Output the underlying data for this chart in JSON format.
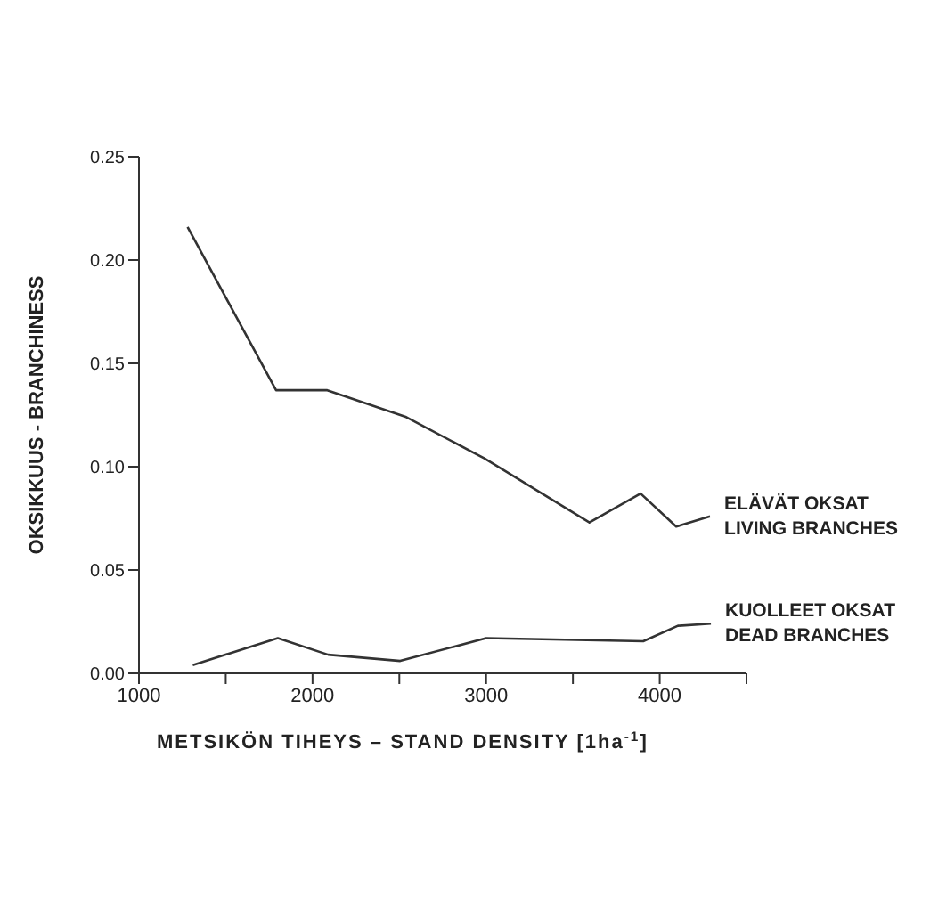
{
  "chart_data": {
    "type": "line",
    "xlabel": "METSIKÖN TIHEYS – STAND DENSITY [1ha$^{-1}$]",
    "ylabel": "OKSIKKUUS - BRANCHINESS",
    "series": [
      {
        "name": "ELÄVÄT OKSAT\nLIVING BRANCHES",
        "color": "#333333",
        "x": [
          1280,
          1790,
          2085,
          2540,
          2990,
          3595,
          3890,
          4095,
          4290
        ],
        "values": [
          0.216,
          0.137,
          0.137,
          0.124,
          0.104,
          0.073,
          0.087,
          0.071,
          0.076
        ]
      },
      {
        "name": "KUOLLEET OKSAT\nDEAD BRANCHES",
        "color": "#333333",
        "x": [
          1310,
          1800,
          2090,
          2505,
          3000,
          3905,
          4105,
          4295
        ],
        "values": [
          0.004,
          0.017,
          0.009,
          0.006,
          0.017,
          0.0155,
          0.023,
          0.024
        ]
      }
    ],
    "xlim": [
      1000,
      4500
    ],
    "xticks": [
      1000,
      {
        "value": 1500,
        "label": null
      },
      2000,
      {
        "value": 2500,
        "label": null
      },
      3000,
      {
        "value": 3500,
        "label": null
      },
      4000,
      {
        "value": 4500,
        "label": null
      }
    ],
    "ylim": [
      0,
      0.25
    ],
    "yticks": [
      {
        "value": 0,
        "label": "0.00"
      },
      {
        "value": 0.05,
        "label": "0.05"
      },
      {
        "value": 0.1,
        "label": "0.10"
      },
      {
        "value": 0.15,
        "label": "0.15"
      },
      {
        "value": 0.2,
        "label": "0.20"
      },
      {
        "value": 0.25,
        "label": "0.25"
      }
    ],
    "marker": "none",
    "line_style": "solid"
  }
}
